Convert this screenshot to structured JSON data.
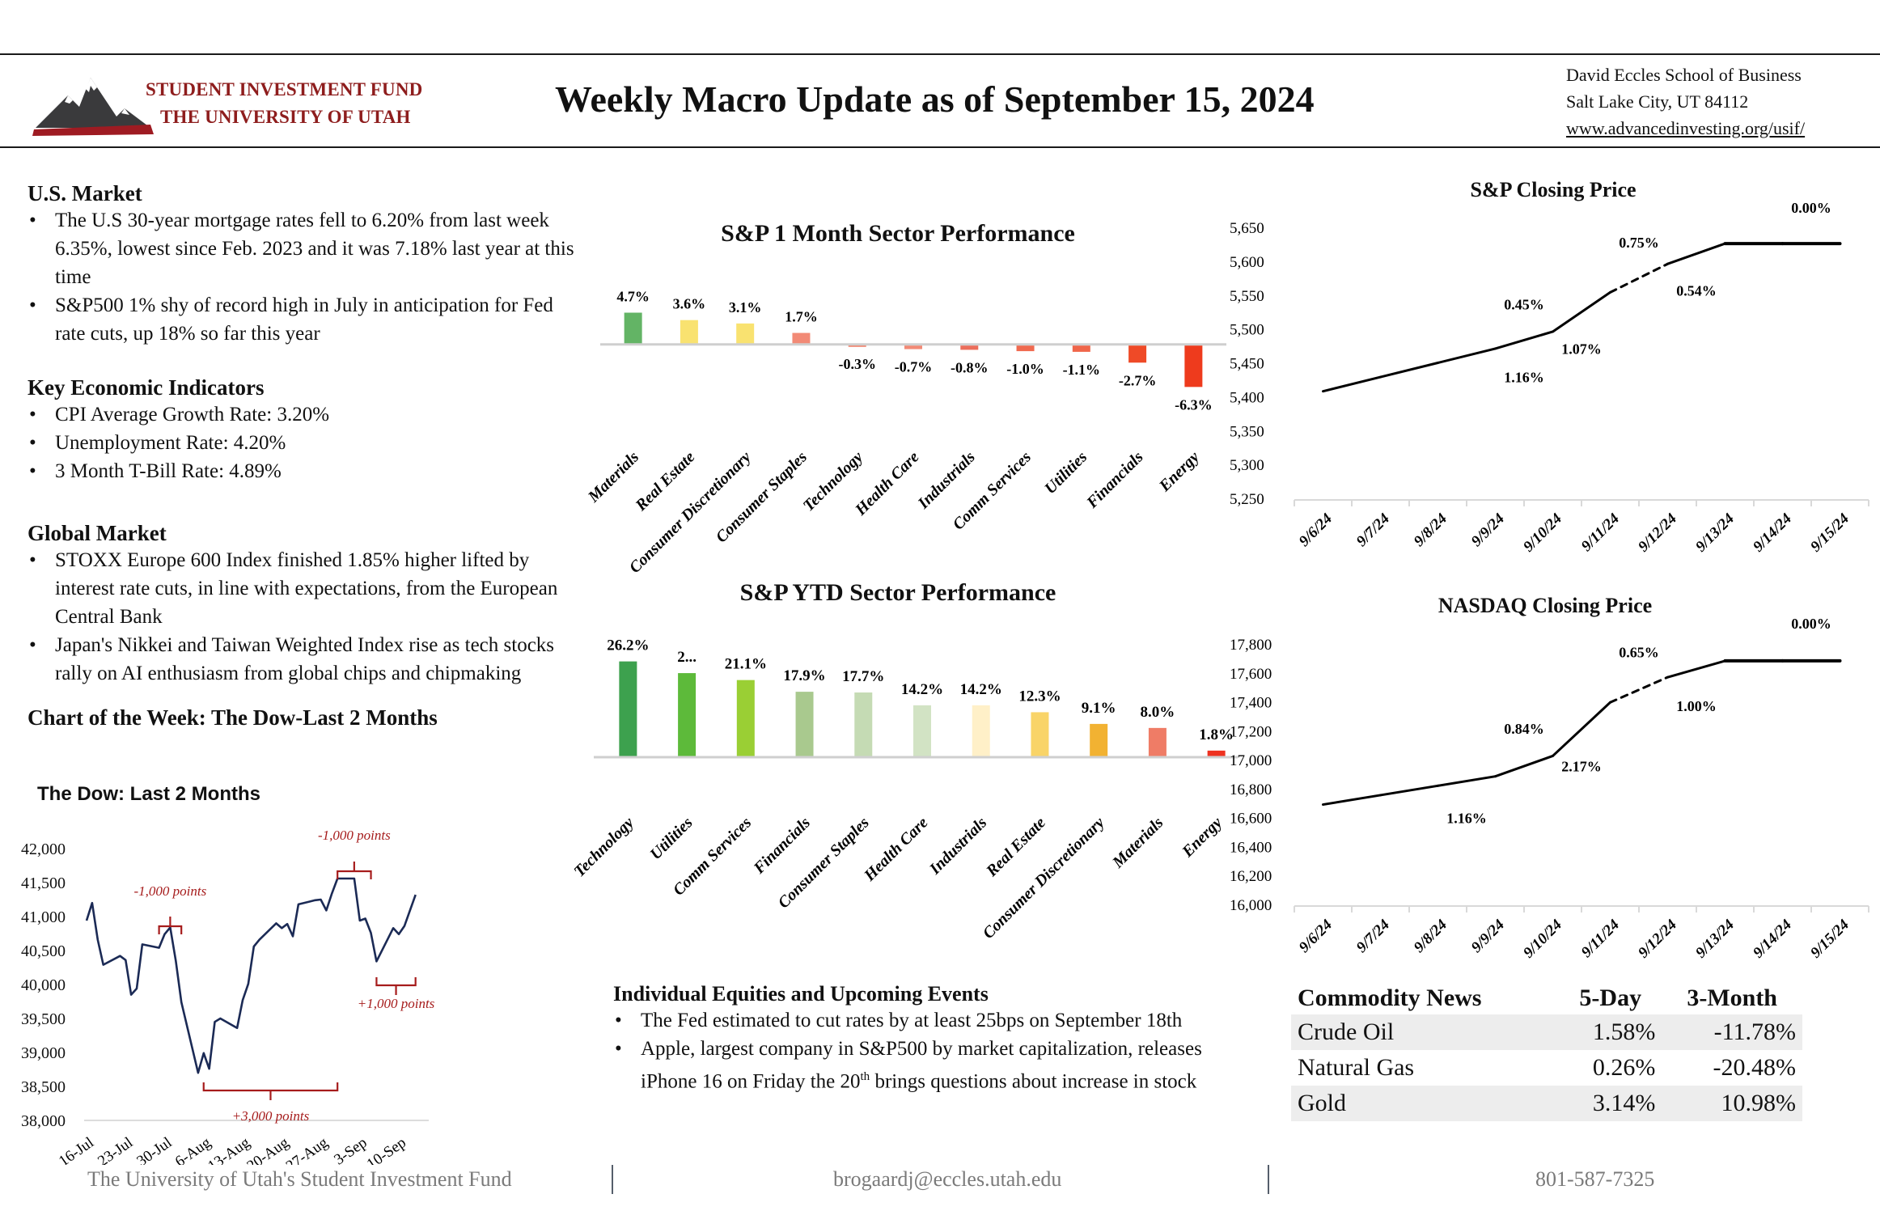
{
  "header": {
    "logo": {
      "line1": "STUDENT INVESTMENT FUND",
      "line2": "THE UNIVERSITY OF UTAH",
      "icon": "mountain-logo-icon",
      "brand_color": "#8E1D1D"
    },
    "title": "Weekly Macro Update as of  September 15, 2024",
    "address": {
      "line1": "David Eccles School of Business",
      "line2": "Salt Lake City, UT 84112",
      "link": "www.advancedinvesting.org/usif/"
    }
  },
  "us_market": {
    "heading": "U.S. Market",
    "bullets": [
      "The U.S 30-year mortgage rates fell to 6.20% from last week 6.35%, lowest since Feb. 2023 and it was 7.18% last year at this time",
      "S&P500 1% shy of record high in July in anticipation for Fed rate cuts, up 18% so far this year"
    ]
  },
  "indicators": {
    "heading": "Key Economic Indicators",
    "bullets": [
      "CPI Average Growth Rate: 3.20%",
      "Unemployment Rate: 4.20%",
      "3 Month T-Bill Rate: 4.89%"
    ]
  },
  "global_market": {
    "heading": "Global Market",
    "bullets": [
      "STOXX Europe 600 Index finished 1.85% higher lifted by interest rate cuts, in line with expectations, from the European Central Bank",
      "Japan's Nikkei and Taiwan Weighted Index rise as tech stocks rally on AI enthusiasm from global chips and chipmaking"
    ]
  },
  "chart_of_week": {
    "heading": "Chart of the Week: The Dow-Last 2 Months"
  },
  "equities": {
    "heading": "Individual Equities and Upcoming Events",
    "bullet1": "The Fed estimated to cut rates by at least 25bps on September 18th",
    "bullet2_pre": "Apple, largest company in S&P500 by market capitalization, releases iPhone 16 on Friday the 20",
    "bullet2_sup": "th",
    "bullet2_post": " brings questions about increase in stock"
  },
  "commodities": {
    "headers": [
      "Commodity News",
      "5-Day",
      "3-Month"
    ],
    "rows": [
      {
        "name": "Crude Oil",
        "five_day": "1.58%",
        "three_month": "-11.78%"
      },
      {
        "name": "Natural Gas",
        "five_day": "0.26%",
        "three_month": "-20.48%"
      },
      {
        "name": "Gold",
        "five_day": "3.14%",
        "three_month": "10.98%"
      }
    ]
  },
  "footer": {
    "org": "The University of Utah's Student Investment Fund",
    "email": "brogaardj@eccles.utah.edu",
    "phone": "801-587-7325"
  },
  "chart_data": [
    {
      "id": "sector_1m",
      "type": "bar",
      "title": "S&P 1 Month Sector Performance",
      "categories": [
        "Materials",
        "Real Estate",
        "Consumer Discretionary",
        "Consumer Staples",
        "Technology",
        "Health Care",
        "Industrials",
        "Comm Services",
        "Utilities",
        "Financials",
        "Energy"
      ],
      "values": [
        4.7,
        3.6,
        3.1,
        1.7,
        -0.3,
        -0.7,
        -0.8,
        -1.0,
        -1.1,
        -2.7,
        -6.3
      ],
      "labels": [
        "4.7%",
        "3.6%",
        "3.1%",
        "1.7%",
        "-0.3%",
        "-0.7%",
        "-0.8%",
        "-1.0%",
        "-1.1%",
        "-2.7%",
        "-6.3%"
      ],
      "colors": [
        "#63B465",
        "#F9E270",
        "#F9E270",
        "#F28A76",
        "#F07A62",
        "#F28A76",
        "#EC6E5B",
        "#F06A50",
        "#F0664A",
        "#EF4A27",
        "#EE3B1D"
      ],
      "ylim": [
        -6.5,
        5.0
      ],
      "grid": false,
      "legend": "none"
    },
    {
      "id": "sector_ytd",
      "type": "bar",
      "title": "S&P YTD Sector Performance",
      "categories": [
        "Technology",
        "Utilities",
        "Comm Services",
        "Financials",
        "Consumer Staples",
        "Health Care",
        "Industrials",
        "Real Estate",
        "Consumer Discretionary",
        "Materials",
        "Energy"
      ],
      "values": [
        26.2,
        23.0,
        21.1,
        17.9,
        17.7,
        14.2,
        14.2,
        12.3,
        9.1,
        8.0,
        1.8
      ],
      "labels": [
        "26.2%",
        "2...",
        "21.1%",
        "17.9%",
        "17.7%",
        "14.2%",
        "14.2%",
        "12.3%",
        "9.1%",
        "8.0%",
        "1.8%"
      ],
      "colors": [
        "#3DA14E",
        "#5DBA3A",
        "#9ACF34",
        "#A9C98E",
        "#C5DBB4",
        "#D2E3C4",
        "#FFF0C8",
        "#F9D468",
        "#F2B232",
        "#EF7C66",
        "#EE3220"
      ],
      "ylim": [
        0,
        27
      ],
      "grid": false,
      "legend": "none"
    },
    {
      "id": "sp_close",
      "type": "line",
      "title": "S&P Closing Price",
      "x": [
        "9/6/24",
        "9/7/24",
        "9/8/24",
        "9/9/24",
        "9/10/24",
        "9/11/24",
        "9/12/24",
        "9/13/24",
        "9/14/24",
        "9/15/24"
      ],
      "values": [
        5408,
        5429,
        5450,
        5471,
        5496,
        5554,
        5596,
        5626,
        5626,
        5626
      ],
      "dashed_segment": [
        "9/11/24",
        "9/12/24"
      ],
      "annotations": [
        {
          "text": "1.16%",
          "x": "9/9/24",
          "pos": "below"
        },
        {
          "text": "0.45%",
          "x": "9/9/24",
          "pos": "above"
        },
        {
          "text": "1.07%",
          "x": "9/10/24",
          "pos": "below"
        },
        {
          "text": "0.75%",
          "x": "9/11/24",
          "pos": "above"
        },
        {
          "text": "0.54%",
          "x": "9/12/24",
          "pos": "below"
        },
        {
          "text": "0.00%",
          "x": "9/14/24",
          "pos": "above"
        }
      ],
      "yticks": [
        "5,250",
        "5,300",
        "5,350",
        "5,400",
        "5,450",
        "5,500",
        "5,550",
        "5,600",
        "5,650"
      ],
      "ylim": [
        5250,
        5650
      ],
      "grid": false,
      "legend": "none"
    },
    {
      "id": "nasdaq_close",
      "type": "line",
      "title": "NASDAQ Closing Price",
      "x": [
        "9/6/24",
        "9/7/24",
        "9/8/24",
        "9/9/24",
        "9/10/24",
        "9/11/24",
        "9/12/24",
        "9/13/24",
        "9/14/24",
        "9/15/24"
      ],
      "values": [
        16690,
        16755,
        16820,
        16885,
        17026,
        17396,
        17570,
        17683,
        17683,
        17683
      ],
      "dashed_segment": [
        "9/11/24",
        "9/12/24"
      ],
      "annotations": [
        {
          "text": "1.16%",
          "x": "9/8/24",
          "pos": "below"
        },
        {
          "text": "0.84%",
          "x": "9/9/24",
          "pos": "above"
        },
        {
          "text": "2.17%",
          "x": "9/10/24",
          "pos": "below"
        },
        {
          "text": "0.65%",
          "x": "9/11/24",
          "pos": "above"
        },
        {
          "text": "1.00%",
          "x": "9/12/24",
          "pos": "below"
        },
        {
          "text": "0.00%",
          "x": "9/14/24",
          "pos": "above"
        }
      ],
      "yticks": [
        "16,000",
        "16,200",
        "16,400",
        "16,600",
        "16,800",
        "17,000",
        "17,200",
        "17,400",
        "17,600",
        "17,800"
      ],
      "ylim": [
        16000,
        17800
      ],
      "grid": false,
      "legend": "none"
    },
    {
      "id": "dow_2m",
      "type": "line",
      "title": "The Dow: Last 2 Months",
      "x": [
        "16-Jul",
        "17-Jul",
        "18-Jul",
        "19-Jul",
        "22-Jul",
        "23-Jul",
        "24-Jul",
        "25-Jul",
        "26-Jul",
        "29-Jul",
        "30-Jul",
        "31-Jul",
        "1-Aug",
        "2-Aug",
        "5-Aug",
        "6-Aug",
        "7-Aug",
        "8-Aug",
        "9-Aug",
        "12-Aug",
        "13-Aug",
        "14-Aug",
        "15-Aug",
        "16-Aug",
        "19-Aug",
        "20-Aug",
        "21-Aug",
        "22-Aug",
        "23-Aug",
        "26-Aug",
        "27-Aug",
        "28-Aug",
        "29-Aug",
        "30-Aug",
        "2-Sep",
        "3-Sep",
        "4-Sep",
        "5-Sep",
        "6-Sep",
        "9-Sep",
        "10-Sep",
        "11-Sep",
        "13-Sep"
      ],
      "day_offsets": [
        0,
        1,
        2,
        3,
        6,
        7,
        8,
        9,
        10,
        13,
        14,
        15,
        16,
        17,
        20,
        21,
        22,
        23,
        24,
        27,
        28,
        29,
        30,
        31,
        34,
        35,
        36,
        37,
        38,
        41,
        42,
        43,
        44,
        45,
        48,
        49,
        50,
        51,
        52,
        55,
        56,
        57,
        59
      ],
      "values": [
        40940,
        41200,
        40660,
        40290,
        40420,
        40360,
        39850,
        39940,
        40590,
        40540,
        40740,
        40840,
        40350,
        39740,
        38700,
        38990,
        38760,
        39450,
        39500,
        39360,
        39770,
        40010,
        40560,
        40660,
        40900,
        40830,
        40890,
        40710,
        41180,
        41240,
        41250,
        41090,
        41340,
        41560,
        41560,
        40940,
        40970,
        40760,
        40340,
        40830,
        40740,
        40860,
        41320
      ],
      "xticks": [
        "16-Jul",
        "23-Jul",
        "30-Jul",
        "6-Aug",
        "13-Aug",
        "20-Aug",
        "27-Aug",
        "3-Sep",
        "10-Sep"
      ],
      "yticks": [
        "38,000",
        "38,500",
        "39,000",
        "39,500",
        "40,000",
        "40,500",
        "41,000",
        "41,500",
        "42,000"
      ],
      "ylim": [
        38000,
        42000
      ],
      "line_color": "#1B2A55",
      "annotations": [
        {
          "text": "-1,000 points",
          "span": [
            "29-Jul",
            "2-Aug"
          ],
          "pos": "above"
        },
        {
          "text": "-1,000 points",
          "span": [
            "30-Aug",
            "5-Sep"
          ],
          "pos": "above"
        },
        {
          "text": "+3,000 points",
          "span": [
            "6-Aug",
            "30-Aug"
          ],
          "pos": "below"
        },
        {
          "text": "+1,000 points",
          "span": [
            "6-Sep",
            "13-Sep"
          ],
          "pos": "below"
        }
      ],
      "annotation_color": "#A61C1C",
      "grid": false,
      "legend": "none"
    }
  ]
}
